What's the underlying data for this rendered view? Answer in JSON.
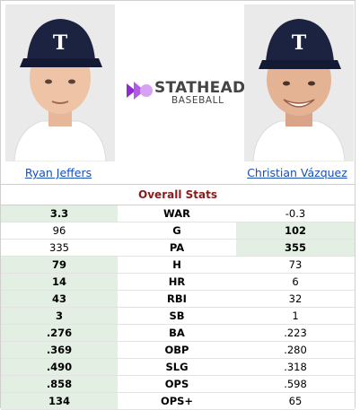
{
  "players": {
    "left": {
      "name": "Ryan Jeffers"
    },
    "right": {
      "name": "Christian Vázquez"
    }
  },
  "logo": {
    "word1": "STATHEAD",
    "word2": "BASEBALL",
    "accent": "#8e2bd1"
  },
  "stats": {
    "title": "Overall Stats",
    "highlight_color": "#e2efe2",
    "title_color": "#8b1a1a",
    "rows": [
      {
        "stat": "WAR",
        "left": "3.3",
        "right": "-0.3",
        "winner": "left"
      },
      {
        "stat": "G",
        "left": "96",
        "right": "102",
        "winner": "right"
      },
      {
        "stat": "PA",
        "left": "335",
        "right": "355",
        "winner": "right"
      },
      {
        "stat": "H",
        "left": "79",
        "right": "73",
        "winner": "left"
      },
      {
        "stat": "HR",
        "left": "14",
        "right": "6",
        "winner": "left"
      },
      {
        "stat": "RBI",
        "left": "43",
        "right": "32",
        "winner": "left"
      },
      {
        "stat": "SB",
        "left": "3",
        "right": "1",
        "winner": "left"
      },
      {
        "stat": "BA",
        "left": ".276",
        "right": ".223",
        "winner": "left"
      },
      {
        "stat": "OBP",
        "left": ".369",
        "right": ".280",
        "winner": "left"
      },
      {
        "stat": "SLG",
        "left": ".490",
        "right": ".318",
        "winner": "left"
      },
      {
        "stat": "OPS",
        "left": ".858",
        "right": ".598",
        "winner": "left"
      },
      {
        "stat": "OPS+",
        "left": "134",
        "right": "65",
        "winner": "left"
      }
    ]
  }
}
